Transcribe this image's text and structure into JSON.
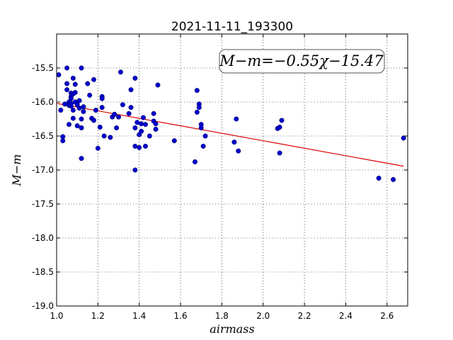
{
  "chart_data": {
    "type": "scatter",
    "title": "2021-11-11_193300",
    "xlabel": "airmass",
    "ylabel": "M−m",
    "xlim": [
      1.0,
      2.7
    ],
    "ylim": [
      -19.0,
      -15.0
    ],
    "y_inverted": true,
    "grid": true,
    "x_ticks": [
      "1.0",
      "1.2",
      "1.4",
      "1.6",
      "1.8",
      "2.0",
      "2.2",
      "2.4",
      "2.6"
    ],
    "y_ticks": [
      "-15.5",
      "-16.0",
      "-16.5",
      "-17.0",
      "-17.5",
      "-18.0",
      "-18.5",
      "-19.0"
    ],
    "annotation": "M−m=−0.55χ−15.47",
    "fit": {
      "slope": -0.55,
      "intercept": -15.47,
      "x_range": [
        1.0,
        2.68
      ],
      "color": "#dd0000"
    },
    "point_color": "#0000cc",
    "series": [
      {
        "x": [
          1.01,
          1.02,
          1.03,
          1.03,
          1.04,
          1.05,
          1.05,
          1.05,
          1.06,
          1.06,
          1.06,
          1.07,
          1.07,
          1.07,
          1.07,
          1.07,
          1.08,
          1.08,
          1.08,
          1.08,
          1.09,
          1.09,
          1.09,
          1.1,
          1.1,
          1.11,
          1.11,
          1.12,
          1.12,
          1.12,
          1.12,
          1.13,
          1.13,
          1.15,
          1.16,
          1.17,
          1.18,
          1.18,
          1.19,
          1.2,
          1.21,
          1.22,
          1.22,
          1.22,
          1.23,
          1.26,
          1.27,
          1.28,
          1.29,
          1.3,
          1.31,
          1.32,
          1.35,
          1.36,
          1.36,
          1.38,
          1.38,
          1.38,
          1.38,
          1.39,
          1.4,
          1.4,
          1.41,
          1.41,
          1.42,
          1.43,
          1.43,
          1.45,
          1.47,
          1.47,
          1.48,
          1.48,
          1.49,
          1.57,
          1.67,
          1.68,
          1.68,
          1.69,
          1.69,
          1.7,
          1.7,
          1.71,
          1.72,
          1.86,
          1.87,
          1.88,
          2.07,
          2.08,
          2.08,
          2.09,
          2.56,
          2.63,
          2.68
        ],
        "y": [
          -15.6,
          -16.12,
          -16.51,
          -16.57,
          -16.03,
          -15.5,
          -15.73,
          -15.82,
          -16.0,
          -16.05,
          -16.33,
          -15.87,
          -15.92,
          -15.95,
          -16.02,
          -16.06,
          -15.65,
          -15.88,
          -16.12,
          -16.24,
          -15.74,
          -15.86,
          -16.0,
          -16.04,
          -16.35,
          -16.09,
          -15.98,
          -15.5,
          -16.25,
          -16.38,
          -16.83,
          -16.07,
          -16.14,
          -15.73,
          -15.9,
          -16.24,
          -15.67,
          -16.27,
          -16.12,
          -16.68,
          -16.37,
          -15.92,
          -15.95,
          -16.08,
          -16.5,
          -16.52,
          -16.22,
          -16.18,
          -16.38,
          -16.22,
          -15.56,
          -16.04,
          -16.17,
          -15.82,
          -16.08,
          -15.65,
          -16.38,
          -16.65,
          -17.0,
          -16.3,
          -16.48,
          -16.67,
          -16.32,
          -16.43,
          -16.23,
          -16.33,
          -16.65,
          -16.5,
          -16.17,
          -16.28,
          -16.32,
          -16.4,
          -15.75,
          -16.57,
          -16.88,
          -15.83,
          -16.15,
          -16.03,
          -16.08,
          -16.33,
          -16.38,
          -16.65,
          -16.5,
          -16.59,
          -16.25,
          -16.72,
          -16.39,
          -16.37,
          -16.75,
          -16.27,
          -17.12,
          -17.14,
          -16.53
        ]
      }
    ]
  }
}
